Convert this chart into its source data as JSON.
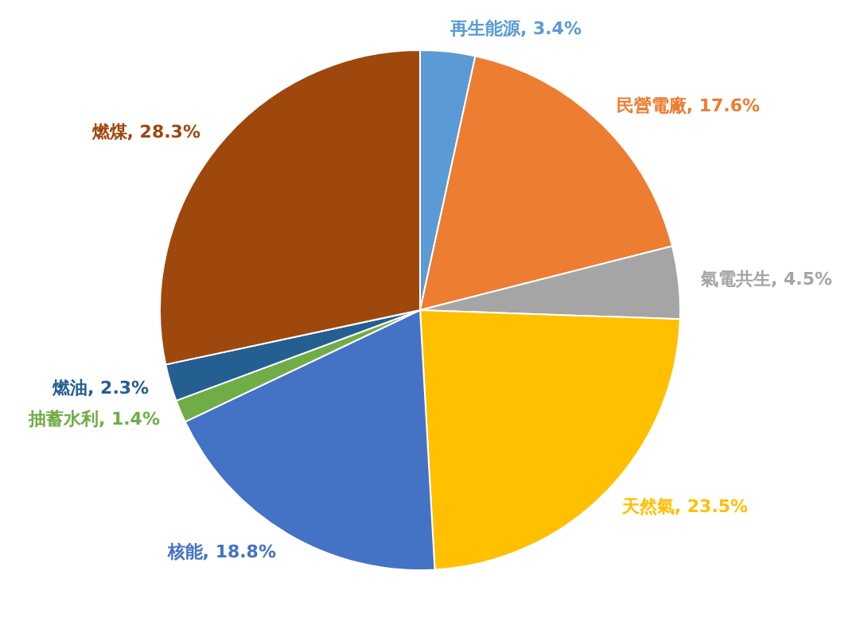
{
  "chart_data": {
    "type": "pie",
    "categories": [
      "再生能源",
      "民營電廠",
      "氣電共生",
      "天然氣",
      "核能",
      "抽蓄水利",
      "燃油",
      "燃煤"
    ],
    "values": [
      3.4,
      17.6,
      4.5,
      23.5,
      18.8,
      1.4,
      2.3,
      28.3
    ],
    "value_labels": [
      "3.4%",
      "17.6%",
      "4.5%",
      "23.5%",
      "18.8%",
      "1.4%",
      "2.3%",
      "28.3%"
    ],
    "colors": [
      "#5b9bd5",
      "#ed7d31",
      "#a5a5a5",
      "#ffc000",
      "#4472c4",
      "#70ad47",
      "#255e91",
      "#9e480e"
    ],
    "legend": false
  }
}
